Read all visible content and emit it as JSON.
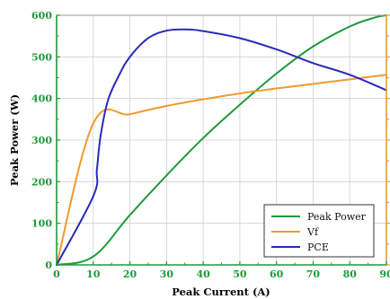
{
  "colors": {
    "peak_power": "#1e9a3a",
    "vf": "#f09a2e",
    "pce": "#2a2ab8",
    "left_axis": "#1e9a3a",
    "bottom_axis": "#1e9a3a",
    "right_axis": "#f09a2e",
    "grid": "#cfcfcf"
  },
  "chart_data": {
    "type": "line",
    "xlabel": "Peak Current (A)",
    "ylabel": "Peak Power (W)",
    "xlim": [
      0,
      90
    ],
    "ylim": [
      0,
      600
    ],
    "x_ticks": [
      0,
      10,
      20,
      30,
      40,
      50,
      60,
      70,
      80,
      90
    ],
    "y_ticks": [
      0,
      100,
      200,
      300,
      400,
      500,
      600
    ],
    "grid": true,
    "legend_position": "bottom-right",
    "series": [
      {
        "name": "Peak Power",
        "color_key": "peak_power",
        "x": [
          0,
          10,
          20,
          30,
          40,
          50,
          60,
          70,
          80,
          87,
          90
        ],
        "y": [
          0,
          20,
          120,
          215,
          305,
          385,
          460,
          525,
          573,
          595,
          600
        ]
      },
      {
        "name": "Vf",
        "color_key": "vf",
        "x": [
          0,
          10,
          20,
          30,
          40,
          50,
          60,
          70,
          80,
          90
        ],
        "y": [
          0,
          340,
          362,
          382,
          398,
          412,
          424,
          435,
          446,
          457
        ]
      },
      {
        "name": "PCE",
        "color_key": "pce",
        "x": [
          0,
          10,
          11,
          12,
          14,
          17,
          20,
          25,
          30,
          35,
          40,
          50,
          60,
          70,
          80,
          90
        ],
        "y": [
          0,
          165,
          230,
          310,
          395,
          455,
          500,
          545,
          563,
          566,
          562,
          545,
          518,
          485,
          457,
          420
        ]
      }
    ]
  }
}
